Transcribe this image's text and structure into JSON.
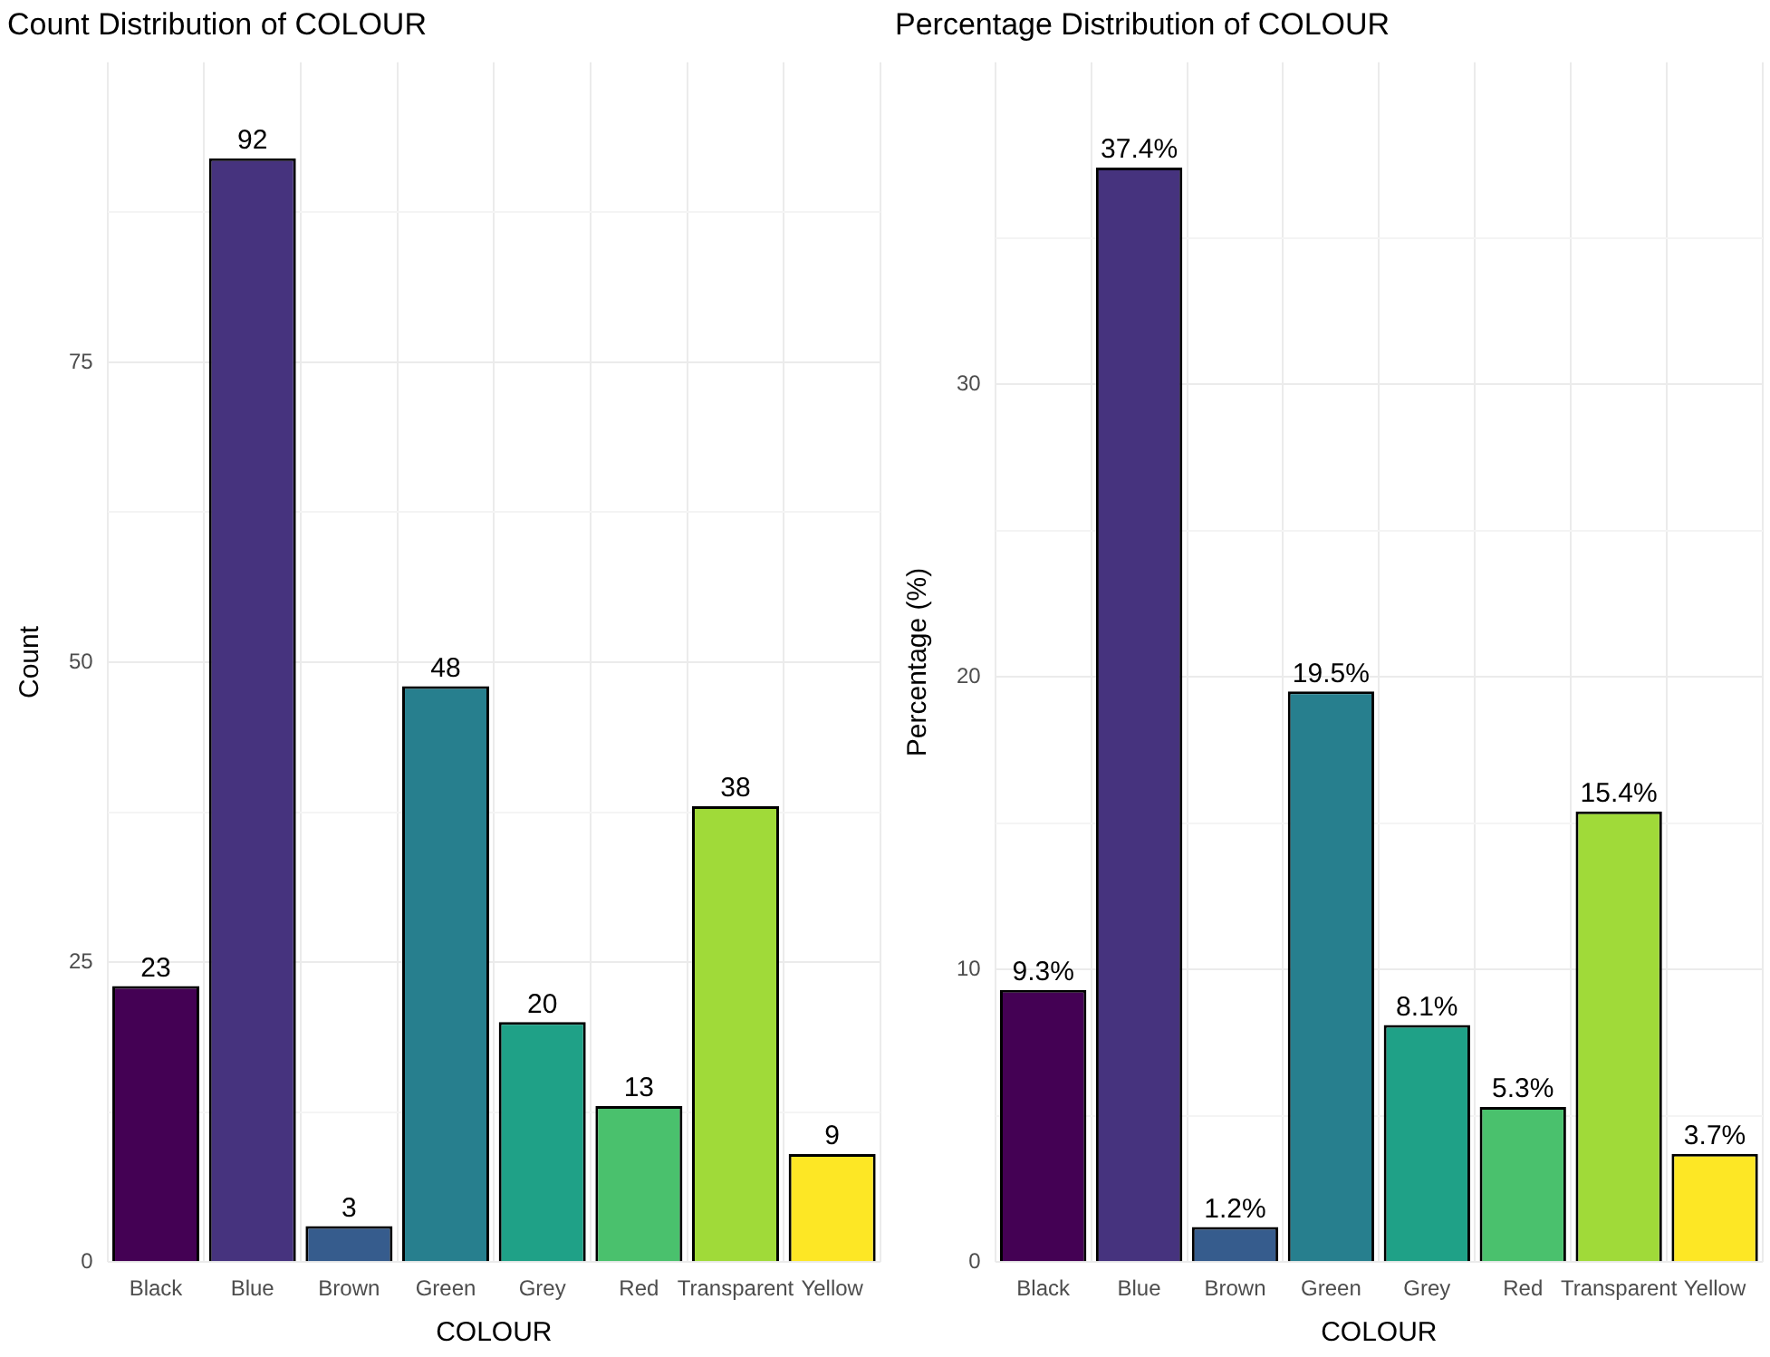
{
  "chart_data": [
    {
      "type": "bar",
      "title": "Count Distribution of COLOUR",
      "xlabel": "COLOUR",
      "ylabel": "Count",
      "categories": [
        "Black",
        "Blue",
        "Brown",
        "Green",
        "Grey",
        "Red",
        "Transparent",
        "Yellow"
      ],
      "values": [
        23,
        92,
        3,
        48,
        20,
        13,
        38,
        9
      ],
      "colors": [
        "#440154",
        "#46337e",
        "#365c8d",
        "#277f8e",
        "#1fa187",
        "#4ac16d",
        "#a0da39",
        "#fde725"
      ],
      "ylim": [
        0,
        100
      ],
      "yticks": [
        0,
        {
          "value": 12.5,
          "label": null
        },
        25,
        {
          "value": 37.5,
          "label": null
        },
        50,
        {
          "value": 62.5,
          "label": null
        },
        75,
        {
          "value": 87.5,
          "label": null
        }
      ],
      "grid": true,
      "legend": false,
      "data_labels": true
    },
    {
      "type": "bar",
      "title": "Percentage Distribution of COLOUR",
      "xlabel": "COLOUR",
      "ylabel": "Percentage (%)",
      "categories": [
        "Black",
        "Blue",
        "Brown",
        "Green",
        "Grey",
        "Red",
        "Transparent",
        "Yellow"
      ],
      "values": [
        9.3,
        37.4,
        1.2,
        19.5,
        8.1,
        5.3,
        15.4,
        3.7
      ],
      "value_labels": [
        "9.3%",
        "37.4%",
        "1.2%",
        "19.5%",
        "8.1%",
        "5.3%",
        "15.4%",
        "3.7%"
      ],
      "colors": [
        "#440154",
        "#46337e",
        "#365c8d",
        "#277f8e",
        "#1fa187",
        "#4ac16d",
        "#a0da39",
        "#fde725"
      ],
      "ylim": [
        0,
        41
      ],
      "yticks": [
        0,
        {
          "value": 5,
          "label": null
        },
        10,
        {
          "value": 15,
          "label": null
        },
        20,
        {
          "value": 25,
          "label": null
        },
        30,
        {
          "value": 35,
          "label": null
        }
      ],
      "grid": true,
      "legend": false
    }
  ]
}
